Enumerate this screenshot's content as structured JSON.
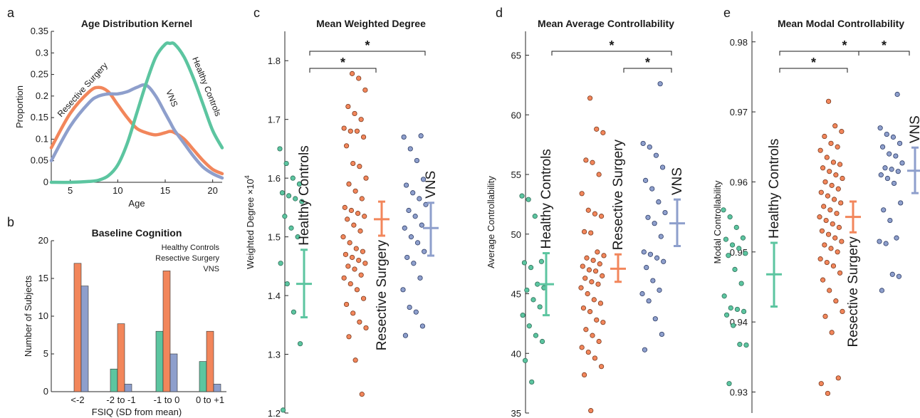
{
  "colors": {
    "healthy": "#5cc5a0",
    "resective": "#f2865b",
    "vns": "#8e9fcc"
  },
  "panel_letters": [
    "a",
    "b",
    "c",
    "d",
    "e"
  ],
  "chart_data": [
    {
      "type": "line",
      "id": "a",
      "title": "Age Distribution Kernel",
      "xlabel": "Age",
      "ylabel": "Proportion",
      "xlim": [
        3,
        21
      ],
      "ylim": [
        0,
        0.35
      ],
      "xticks": [
        "5",
        "10",
        "15",
        "20"
      ],
      "yticks": [
        "0",
        "0.05",
        "0.1",
        "0.15",
        "0.2",
        "0.25",
        "0.3",
        "0.35"
      ],
      "x": [
        3,
        5,
        7,
        8,
        9,
        10,
        11,
        12,
        13,
        14,
        15,
        15.5,
        16,
        17,
        18,
        19,
        20,
        21
      ],
      "series": [
        {
          "name": "Resective Surgery",
          "values": [
            0.08,
            0.16,
            0.21,
            0.22,
            0.21,
            0.18,
            0.15,
            0.125,
            0.115,
            0.11,
            0.115,
            0.118,
            0.115,
            0.1,
            0.075,
            0.05,
            0.03,
            0.02
          ]
        },
        {
          "name": "VNS",
          "values": [
            0.05,
            0.13,
            0.185,
            0.2,
            0.205,
            0.205,
            0.21,
            0.22,
            0.225,
            0.2,
            0.16,
            0.14,
            0.12,
            0.09,
            0.06,
            0.035,
            0.02,
            0.01
          ]
        },
        {
          "name": "Healthy Controls",
          "values": [
            0.0,
            0.0,
            0.002,
            0.005,
            0.015,
            0.04,
            0.09,
            0.16,
            0.23,
            0.29,
            0.32,
            0.322,
            0.32,
            0.29,
            0.24,
            0.18,
            0.12,
            0.08
          ]
        }
      ]
    },
    {
      "type": "bar",
      "id": "b",
      "title": "Baseline Cognition",
      "xlabel": "FSIQ (SD from mean)",
      "ylabel": "Number of Subjects",
      "ylim": [
        0,
        20
      ],
      "yticks": [
        "0",
        "5",
        "10",
        "15",
        "20"
      ],
      "categories": [
        "<-2",
        "-2 to -1",
        "-1 to 0",
        "0 to +1"
      ],
      "series": [
        {
          "name": "Healthy Controls",
          "values": [
            0,
            3,
            8,
            4
          ]
        },
        {
          "name": "Resective Surgery",
          "values": [
            17,
            9,
            16,
            8
          ]
        },
        {
          "name": "VNS",
          "values": [
            14,
            1,
            5,
            1
          ]
        }
      ]
    },
    {
      "type": "scatter",
      "id": "c",
      "title": "Mean Weighted Degree",
      "ylabel": "Weighted Degree",
      "ylabel_multiplier": "×10",
      "ylabel_exponent": "4",
      "ylim": [
        1.2,
        1.85
      ],
      "yticks": [
        "1.2",
        "1.3",
        "1.4",
        "1.5",
        "1.6",
        "1.7",
        "1.8"
      ],
      "significance": [
        {
          "from": 0,
          "to": 1,
          "label": "*"
        },
        {
          "from": 0,
          "to": 2,
          "label": "*"
        }
      ],
      "groups": [
        {
          "name": "Healthy Controls",
          "label": "Healthy Controls",
          "mean": 1.42,
          "ci": [
            1.363,
            1.478
          ],
          "points": [
            1.65,
            1.625,
            1.6,
            1.59,
            1.575,
            1.57,
            1.565,
            1.56,
            1.535,
            1.515,
            1.5,
            1.455,
            1.42,
            1.372,
            1.318,
            1.205
          ]
        },
        {
          "name": "Resective Surgery",
          "label": "Resective Surgery",
          "mean": 1.53,
          "ci": [
            1.502,
            1.56
          ],
          "points": [
            1.778,
            1.77,
            1.75,
            1.722,
            1.71,
            1.7,
            1.685,
            1.68,
            1.68,
            1.67,
            1.655,
            1.625,
            1.62,
            1.6,
            1.59,
            1.578,
            1.565,
            1.55,
            1.545,
            1.54,
            1.535,
            1.53,
            1.52,
            1.51,
            1.5,
            1.49,
            1.48,
            1.475,
            1.47,
            1.465,
            1.46,
            1.455,
            1.45,
            1.445,
            1.435,
            1.43,
            1.42,
            1.41,
            1.395,
            1.385,
            1.37,
            1.355,
            1.345,
            1.33,
            1.29,
            1.232
          ]
        },
        {
          "name": "VNS",
          "label": "VNS",
          "mean": 1.515,
          "ci": [
            1.468,
            1.558
          ],
          "points": [
            1.672,
            1.67,
            1.65,
            1.63,
            1.598,
            1.588,
            1.575,
            1.565,
            1.555,
            1.545,
            1.535,
            1.52,
            1.515,
            1.5,
            1.49,
            1.475,
            1.465,
            1.455,
            1.43,
            1.41,
            1.38,
            1.372,
            1.348,
            1.332
          ]
        }
      ]
    },
    {
      "type": "scatter",
      "id": "d",
      "title": "Mean Average Controllability",
      "ylabel": "Average Controllability",
      "ylim": [
        35,
        67
      ],
      "yticks": [
        "35",
        "40",
        "45",
        "50",
        "55",
        "60",
        "65"
      ],
      "significance": [
        {
          "from": 1,
          "to": 2,
          "label": "*"
        },
        {
          "from": 0,
          "to": 2,
          "label": "*"
        }
      ],
      "groups": [
        {
          "name": "Healthy Controls",
          "label": "Healthy Controls",
          "mean": 45.8,
          "ci": [
            43.2,
            48.4
          ],
          "points": [
            53.2,
            52.9,
            51.5,
            47.7,
            47.6,
            47.2,
            45.8,
            45.5,
            45.3,
            44.5,
            43.9,
            43.2,
            42.3,
            41.5,
            41.0,
            39.4,
            37.6
          ]
        },
        {
          "name": "Resective Surgery",
          "label": "Resective Surgery",
          "mean": 47.1,
          "ci": [
            46.0,
            48.3
          ],
          "points": [
            61.4,
            58.8,
            58.5,
            56.2,
            56.0,
            55.0,
            53.4,
            52.0,
            51.7,
            51.5,
            50.2,
            50.1,
            48.5,
            48.2,
            48.0,
            47.8,
            47.5,
            47.3,
            47.0,
            46.9,
            46.5,
            46.3,
            46.0,
            45.8,
            45.5,
            45.0,
            44.5,
            44.2,
            43.8,
            43.5,
            42.8,
            42.6,
            42.0,
            41.5,
            41.0,
            40.5,
            40.1,
            39.6,
            38.9,
            38.2,
            35.2
          ]
        },
        {
          "name": "VNS",
          "label": "VNS",
          "mean": 50.9,
          "ci": [
            49.0,
            52.9
          ],
          "points": [
            62.6,
            57.6,
            57.3,
            56.6,
            55.6,
            54.5,
            53.8,
            52.7,
            51.8,
            51.4,
            50.9,
            49.8,
            48.5,
            48.3,
            48.0,
            47.7,
            47.2,
            46.1,
            45.3,
            45.0,
            44.4,
            42.9,
            41.6,
            40.3
          ]
        }
      ]
    },
    {
      "type": "scatter",
      "id": "e",
      "title": "Mean Modal Controllability",
      "ylabel": "Modal Controllability",
      "ylim": [
        0.927,
        0.9815
      ],
      "yticks": [
        "0.93",
        "0.94",
        "0.95",
        "0.96",
        "0.97",
        "0.98"
      ],
      "significance": [
        {
          "from": 0,
          "to": 1,
          "label": "*"
        },
        {
          "from": 1,
          "to": 2,
          "label": "*"
        },
        {
          "from": 0,
          "to": 2,
          "label": "*"
        }
      ],
      "groups": [
        {
          "name": "Healthy Controls",
          "label": "Healthy Controls",
          "mean": 0.9468,
          "ci": [
            0.9422,
            0.9513
          ],
          "points": [
            0.956,
            0.955,
            0.9535,
            0.952,
            0.9518,
            0.951,
            0.9505,
            0.9498,
            0.9495,
            0.9475,
            0.9455,
            0.9437,
            0.942,
            0.9418,
            0.9415,
            0.941,
            0.9395,
            0.9368,
            0.9367,
            0.9312
          ]
        },
        {
          "name": "Resective Surgery",
          "label": "Resective Surgery",
          "mean": 0.955,
          "ci": [
            0.9528,
            0.9572
          ],
          "points": [
            0.9715,
            0.968,
            0.9672,
            0.9665,
            0.9655,
            0.965,
            0.9645,
            0.9635,
            0.9628,
            0.9625,
            0.962,
            0.9615,
            0.961,
            0.9605,
            0.96,
            0.9595,
            0.959,
            0.9585,
            0.958,
            0.9575,
            0.957,
            0.9565,
            0.956,
            0.9555,
            0.955,
            0.9545,
            0.954,
            0.9535,
            0.953,
            0.9525,
            0.952,
            0.9515,
            0.951,
            0.9505,
            0.95,
            0.949,
            0.9485,
            0.948,
            0.947,
            0.946,
            0.9445,
            0.943,
            0.9415,
            0.9408,
            0.9385,
            0.932,
            0.9312,
            0.9298
          ]
        },
        {
          "name": "VNS",
          "label": "VNS",
          "mean": 0.9616,
          "ci": [
            0.9584,
            0.9649
          ],
          "points": [
            0.9725,
            0.9677,
            0.9668,
            0.9664,
            0.9655,
            0.965,
            0.964,
            0.9637,
            0.9627,
            0.962,
            0.9618,
            0.9615,
            0.961,
            0.9605,
            0.9598,
            0.957,
            0.956,
            0.9545,
            0.952,
            0.9515,
            0.9512,
            0.9468,
            0.9465,
            0.9445
          ]
        }
      ]
    }
  ]
}
